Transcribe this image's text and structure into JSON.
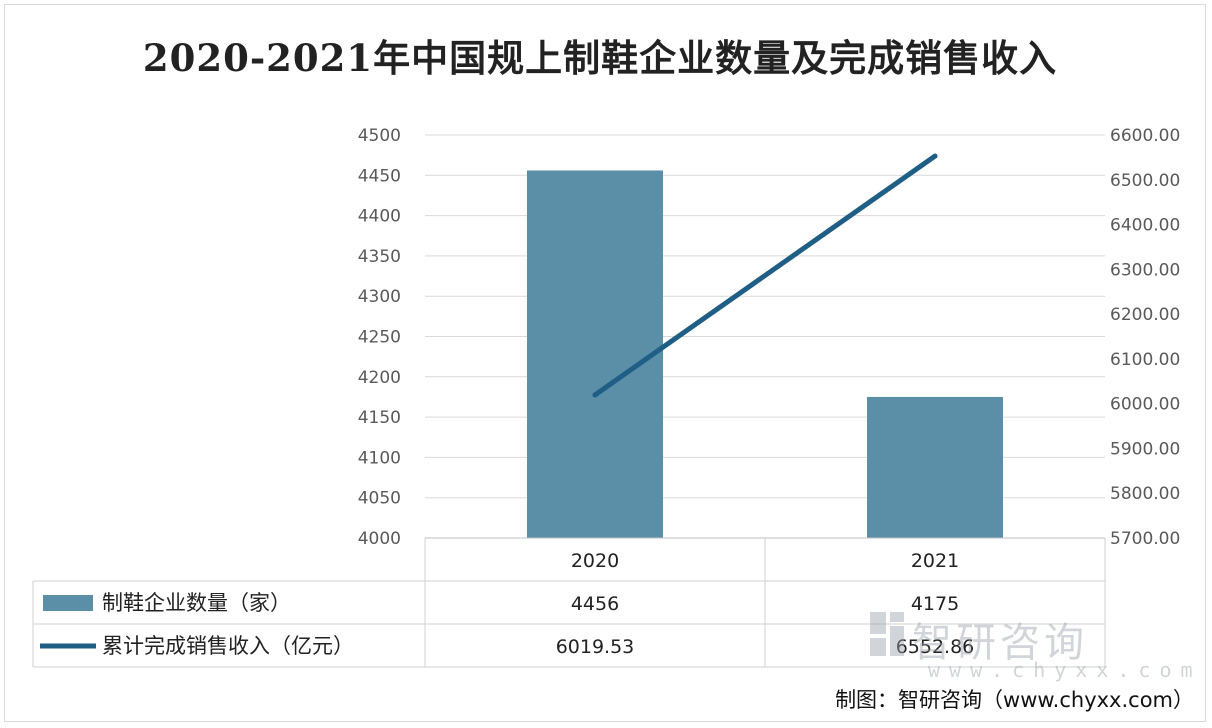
{
  "chart_data": {
    "type": "bar",
    "title": "2020-2021年中国规上制鞋企业数量及完成销售收入",
    "categories": [
      "2020",
      "2021"
    ],
    "series": [
      {
        "name": "制鞋企业数量（家）",
        "type": "bar",
        "axis": "left",
        "values": [
          4456,
          4175
        ],
        "color": "#5b8fa8"
      },
      {
        "name": "累计完成销售收入（亿元）",
        "type": "line",
        "axis": "right",
        "values": [
          "6019.53",
          "6552.86"
        ],
        "color": "#1f5f85"
      }
    ],
    "y_left": {
      "ylim": [
        4000,
        4500
      ],
      "ticks": [
        "4000",
        "4050",
        "4100",
        "4150",
        "4200",
        "4250",
        "4300",
        "4350",
        "4400",
        "4450",
        "4500"
      ]
    },
    "y_right": {
      "ylim": [
        5700,
        6600
      ],
      "ticks": [
        "5700.00",
        "5800.00",
        "5900.00",
        "6000.00",
        "6100.00",
        "6200.00",
        "6300.00",
        "6400.00",
        "6500.00",
        "6600.00"
      ]
    },
    "data_table": true,
    "grid": true
  },
  "watermark": {
    "name": "智研咨询",
    "url": "www.chyxx.com"
  },
  "source": "制图：智研咨询（www.chyxx.com）"
}
